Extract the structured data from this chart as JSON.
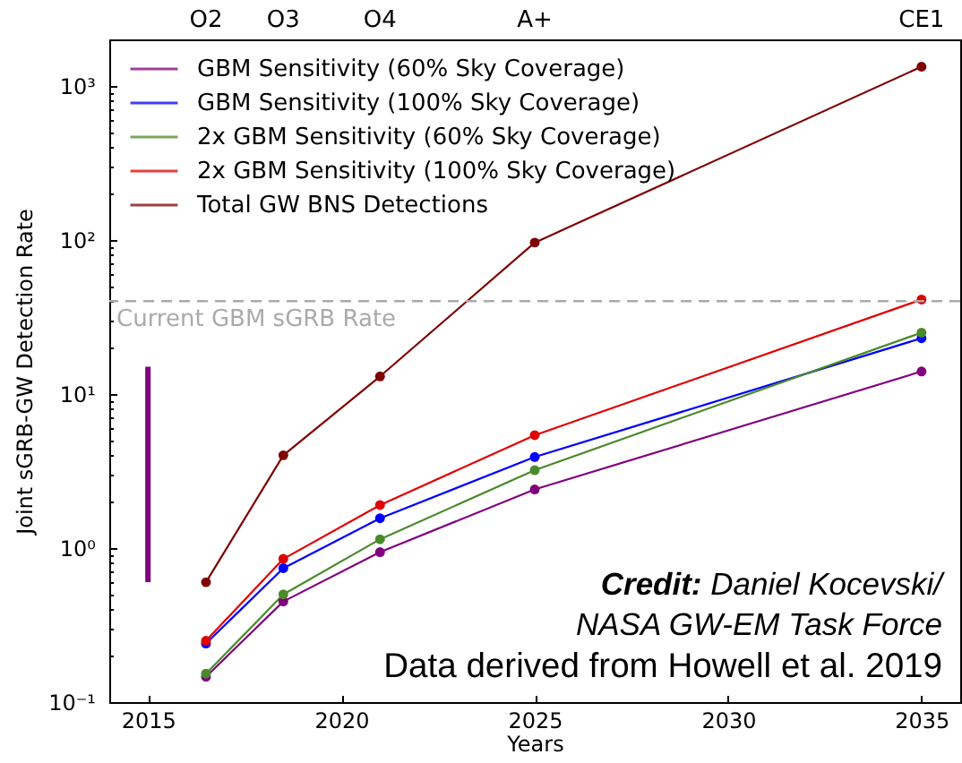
{
  "chart_data": {
    "type": "line",
    "xlabel": "Years",
    "ylabel": "Joint sGRB-GW Detection Rate",
    "x": [
      2016.5,
      2018.5,
      2021,
      2025,
      2035
    ],
    "series": [
      {
        "name": "GBM Sensitivity (60% Sky Coverage)",
        "color": "#800080",
        "values": [
          0.146,
          0.45,
          0.94,
          2.4,
          14
        ]
      },
      {
        "name": "GBM Sensitivity (100% Sky Coverage)",
        "color": "#0000ff",
        "values": [
          0.24,
          0.74,
          1.56,
          3.9,
          23
        ]
      },
      {
        "name": "2x GBM Sensitivity (60% Sky Coverage)",
        "color": "#4a8a2a",
        "values": [
          0.153,
          0.5,
          1.14,
          3.2,
          25
        ]
      },
      {
        "name": "2x GBM Sensitivity (100% Sky Coverage)",
        "color": "#e00000",
        "values": [
          0.25,
          0.85,
          1.9,
          5.4,
          41
        ]
      },
      {
        "name": "Total GW BNS Detections",
        "color": "#7f0000",
        "values": [
          0.6,
          4,
          13,
          96,
          1330
        ]
      },
      {
        "type": "bar",
        "color": "#800080",
        "x": [
          2015
        ],
        "base": [
          0.6
        ],
        "values": [
          14.4
        ]
      }
    ],
    "xlim": [
      2014,
      2036
    ],
    "xticks": [
      2015,
      2020,
      2025,
      2030,
      2035
    ],
    "ylim": [
      0.1,
      2000
    ],
    "yticks": [
      {
        "value": 0.1,
        "label": "10⁻¹"
      },
      {
        "value": 0.2,
        "label": null
      },
      {
        "value": 0.3,
        "label": null
      },
      {
        "value": 0.4,
        "label": null
      },
      {
        "value": 0.5,
        "label": null
      },
      {
        "value": 0.6,
        "label": null
      },
      {
        "value": 0.7,
        "label": null
      },
      {
        "value": 0.8,
        "label": null
      },
      {
        "value": 0.9,
        "label": null
      },
      {
        "value": 1,
        "label": "10⁰"
      },
      {
        "value": 2,
        "label": null
      },
      {
        "value": 3,
        "label": null
      },
      {
        "value": 4,
        "label": null
      },
      {
        "value": 5,
        "label": null
      },
      {
        "value": 6,
        "label": null
      },
      {
        "value": 7,
        "label": null
      },
      {
        "value": 8,
        "label": null
      },
      {
        "value": 9,
        "label": null
      },
      {
        "value": 10,
        "label": "10¹"
      },
      {
        "value": 20,
        "label": null
      },
      {
        "value": 30,
        "label": null
      },
      {
        "value": 40,
        "label": null
      },
      {
        "value": 50,
        "label": null
      },
      {
        "value": 60,
        "label": null
      },
      {
        "value": 70,
        "label": null
      },
      {
        "value": 80,
        "label": null
      },
      {
        "value": 90,
        "label": null
      },
      {
        "value": 100,
        "label": "10²"
      },
      {
        "value": 200,
        "label": null
      },
      {
        "value": 300,
        "label": null
      },
      {
        "value": 400,
        "label": null
      },
      {
        "value": 500,
        "label": null
      },
      {
        "value": 600,
        "label": null
      },
      {
        "value": 700,
        "label": null
      },
      {
        "value": 800,
        "label": null
      },
      {
        "value": 900,
        "label": null
      },
      {
        "value": 1000,
        "label": "10³"
      }
    ],
    "log": "y",
    "marker": "circle",
    "legend": "top left",
    "ref_lines": [
      {
        "axis": "y",
        "value": 40,
        "label": "Current GBM sGRB Rate",
        "color": "#aaaaaa",
        "line_style": "dashed"
      }
    ],
    "annotations": [
      "O2",
      "O3",
      "O4",
      "A+",
      "CE1",
      "Credit: Daniel Kocevski/",
      "NASA GW-EM Task Force",
      "Data derived from Howell et al. 2019"
    ]
  }
}
